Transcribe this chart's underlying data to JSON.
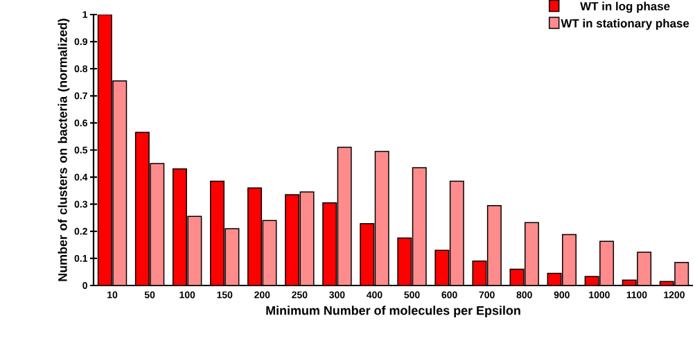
{
  "chart_data": {
    "type": "bar",
    "xlabel": "Minimum Number of molecules per Epsilon",
    "ylabel": "Number of clusters on bacteria (normalized)",
    "categories": [
      "10",
      "50",
      "100",
      "150",
      "200",
      "250",
      "300",
      "400",
      "500",
      "600",
      "700",
      "800",
      "900",
      "1000",
      "1100",
      "1200"
    ],
    "series": [
      {
        "name": "WT in log phase",
        "color": "#ff0000",
        "values": [
          1.0,
          0.565,
          0.43,
          0.385,
          0.36,
          0.335,
          0.305,
          0.228,
          0.175,
          0.13,
          0.09,
          0.06,
          0.045,
          0.033,
          0.02,
          0.015
        ]
      },
      {
        "name": "WT in stationary phase",
        "color": "#ff8c8c",
        "values": [
          0.755,
          0.45,
          0.255,
          0.21,
          0.24,
          0.345,
          0.51,
          0.495,
          0.435,
          0.385,
          0.295,
          0.232,
          0.188,
          0.163,
          0.123,
          0.085
        ]
      }
    ],
    "ylim": [
      0,
      1
    ],
    "yticks": [
      0,
      0.1,
      0.2,
      0.3,
      0.4,
      0.5,
      0.6,
      0.7,
      0.8,
      0.9,
      1
    ],
    "grid": false,
    "legend": "top right"
  }
}
